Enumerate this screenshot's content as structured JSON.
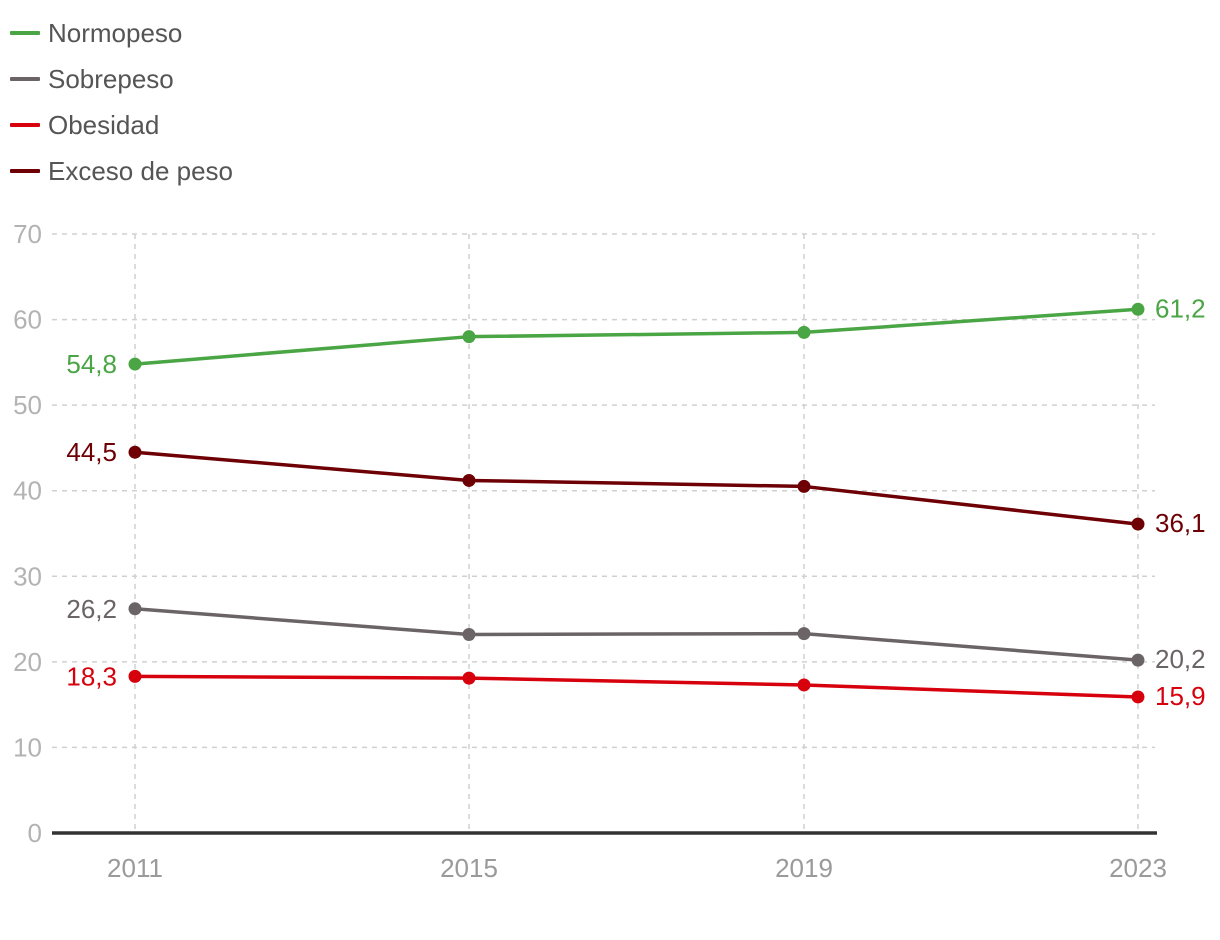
{
  "chart_data": {
    "type": "line",
    "categories": [
      "2011",
      "2015",
      "2019",
      "2023"
    ],
    "ylim": [
      0,
      70
    ],
    "yticks": [
      0,
      10,
      20,
      30,
      40,
      50,
      60,
      70
    ],
    "grid": true,
    "legend_position": "top-left",
    "title": "",
    "xlabel": "",
    "ylabel": "",
    "series": [
      {
        "name": "Normopeso",
        "color": "#4aa544",
        "values": [
          54.8,
          58.0,
          58.5,
          61.2
        ],
        "start_label": "54,8",
        "end_label": "61,2"
      },
      {
        "name": "Sobrepeso",
        "color": "#6b6466",
        "values": [
          26.2,
          23.2,
          23.3,
          20.2
        ],
        "start_label": "26,2",
        "end_label": "20,2"
      },
      {
        "name": "Obesidad",
        "color": "#d7000d",
        "values": [
          18.3,
          18.1,
          17.3,
          15.9
        ],
        "start_label": "18,3",
        "end_label": "15,9"
      },
      {
        "name": "Exceso de peso",
        "color": "#6e0005",
        "values": [
          44.5,
          41.2,
          40.5,
          36.1
        ],
        "start_label": "44,5",
        "end_label": "36,1"
      }
    ]
  }
}
